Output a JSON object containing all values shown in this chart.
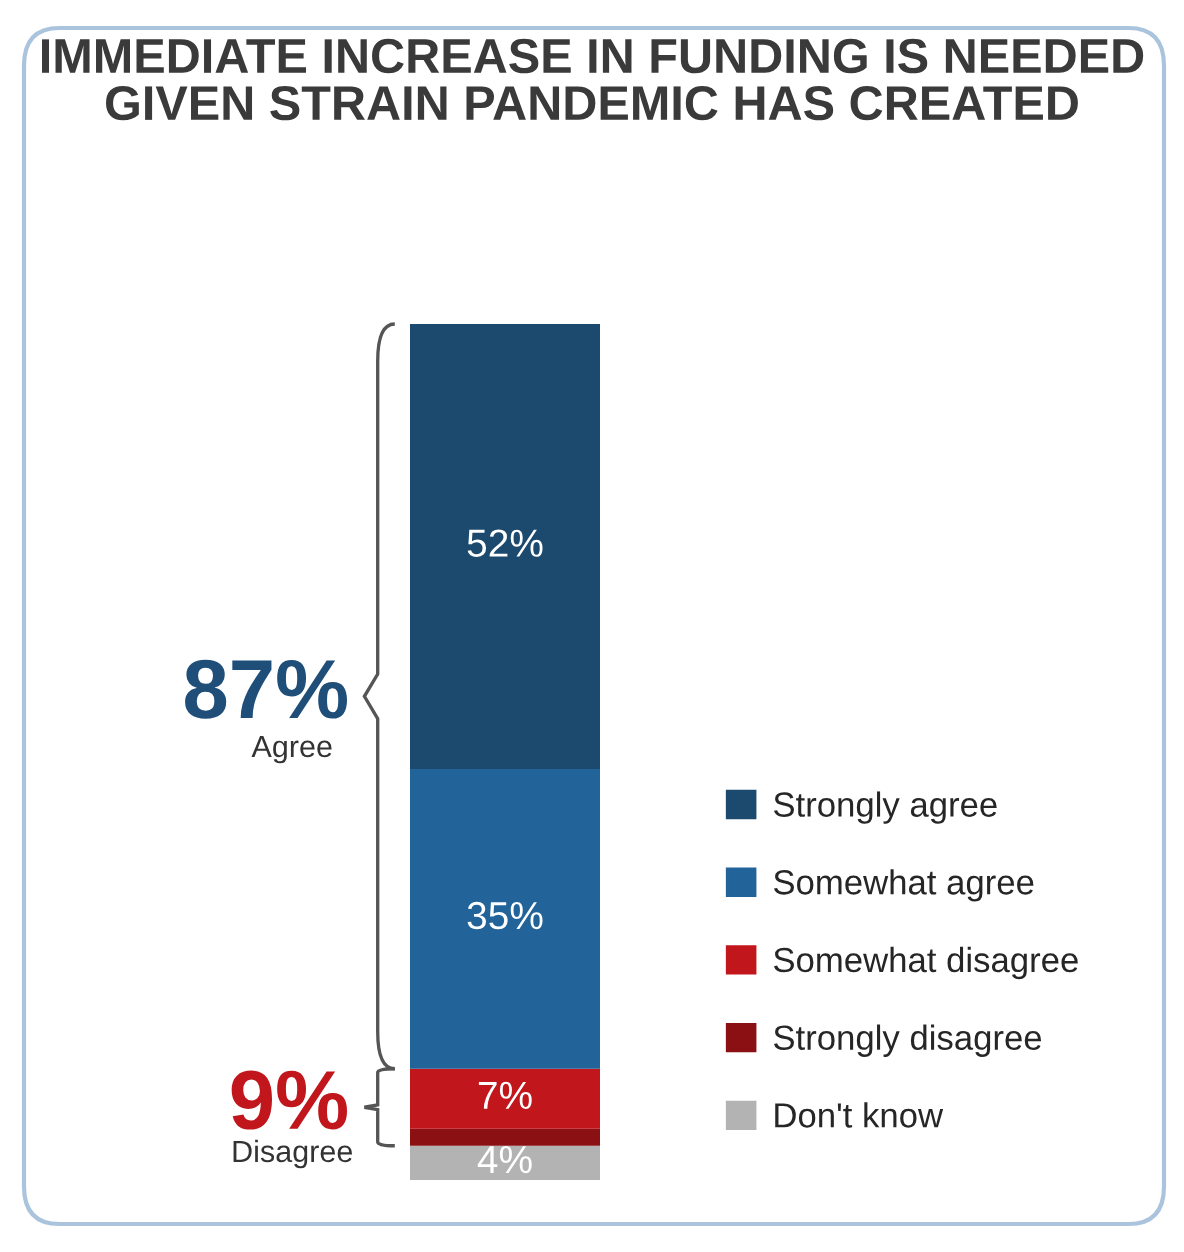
{
  "chart_data": {
    "type": "bar",
    "stacked": true,
    "title": "IMMEDIATE INCREASE IN FUNDING IS NEEDED GIVEN STRAIN PANDEMIC HAS CREATED",
    "categories": [
      null
    ],
    "series": [
      {
        "name": "Don't know",
        "color": "#b3b3b3",
        "values": [
          4
        ],
        "value_labels": [
          "4%"
        ]
      },
      {
        "name": "Strongly disagree",
        "color": "#8b1014",
        "values": [
          2
        ],
        "value_labels": [
          null
        ]
      },
      {
        "name": "Somewhat disagree",
        "color": "#c0161c",
        "values": [
          7
        ],
        "value_labels": [
          "7%"
        ]
      },
      {
        "name": "Somewhat agree",
        "color": "#22639a",
        "values": [
          35
        ],
        "value_labels": [
          "35%"
        ]
      },
      {
        "name": "Strongly agree",
        "color": "#1b4a6e",
        "values": [
          52
        ],
        "value_labels": [
          "52%"
        ]
      }
    ],
    "annotations": [
      "87%",
      "Agree",
      "9%",
      "Disagree"
    ],
    "legend": "right"
  }
}
